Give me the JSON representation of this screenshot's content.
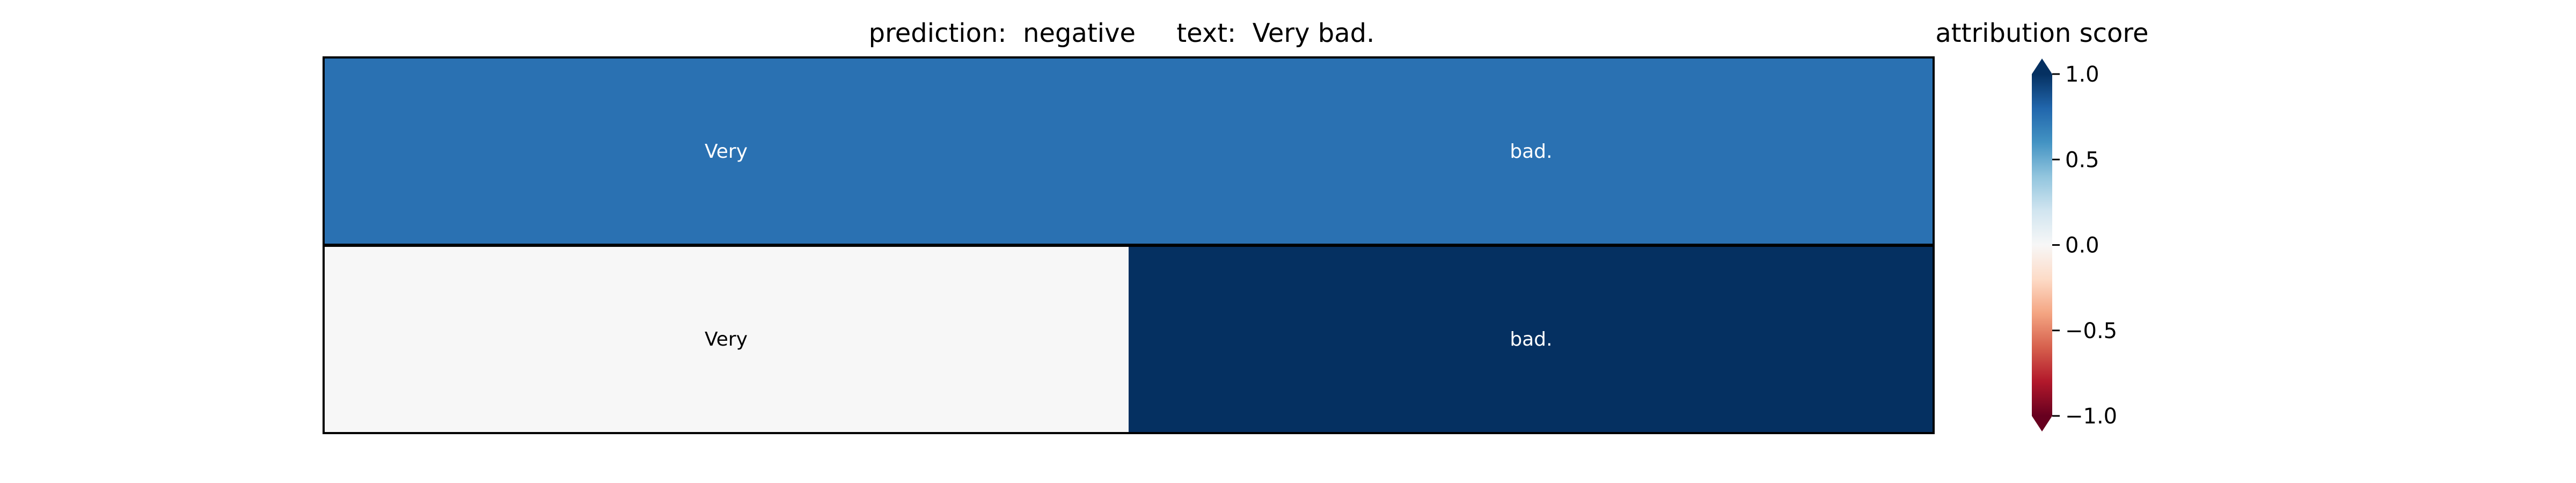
{
  "chart_data": {
    "type": "heatmap",
    "title": "prediction:  negative     text:  Very bad.",
    "colorbar_title": "attribution score",
    "rows": [
      {
        "tokens": [
          "Very",
          "bad."
        ],
        "values": [
          0.75,
          0.75
        ]
      },
      {
        "tokens": [
          "Very",
          "bad."
        ],
        "values": [
          0.0,
          1.0
        ]
      }
    ],
    "colorbar": {
      "min": -1.0,
      "max": 1.0,
      "ticks": [
        1.0,
        0.5,
        0.0,
        -0.5,
        -1.0
      ],
      "tick_labels": [
        "1.0",
        "0.5",
        "0.0",
        "−0.5",
        "−1.0"
      ],
      "colormap": "RdBu",
      "extend": "both"
    },
    "colors": {
      "edge": "#000000",
      "text_on_dark": "#ffffff",
      "text_on_light": "#000000"
    }
  }
}
